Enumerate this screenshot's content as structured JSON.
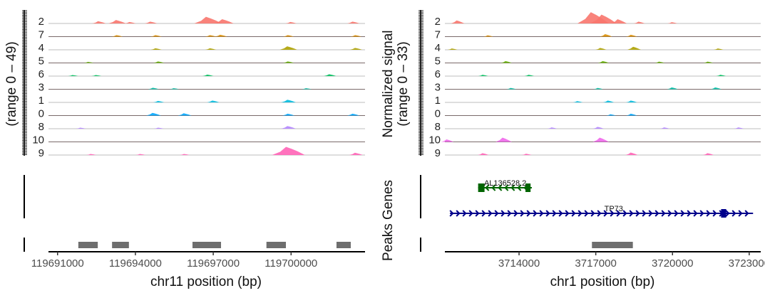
{
  "chart_data": [
    {
      "type": "area",
      "panel": "left",
      "title": "",
      "ylabel": "(range 0 – 49)",
      "ylim": [
        0,
        49
      ],
      "xlabel": "chr11 position (bp)",
      "xlim": [
        119690650,
        119702850
      ],
      "xticks": [
        119691000,
        119694000,
        119697000,
        119700000
      ],
      "xtick_labels": [
        "119691000",
        "119694000",
        "119697000",
        "119700000"
      ],
      "track_order": [
        "2",
        "7",
        "4",
        "5",
        "6",
        "3",
        "1",
        "0",
        "8",
        "10",
        "9"
      ],
      "track_colors": {
        "2": "#F8766D",
        "7": "#DB8E00",
        "4": "#AEA200",
        "5": "#64B200",
        "6": "#00BD5C",
        "3": "#00C1A7",
        "1": "#00BADE",
        "0": "#00A6FF",
        "8": "#B385FF",
        "10": "#EF67EB",
        "9": "#FF63B6"
      },
      "tracks": {
        "2": [
          [
            119692600,
            4
          ],
          [
            119693300,
            7
          ],
          [
            119693800,
            2
          ],
          [
            119694600,
            3
          ],
          [
            119696800,
            15
          ],
          [
            119697400,
            9
          ],
          [
            119700000,
            2
          ],
          [
            119702400,
            3
          ]
        ],
        "7": [
          [
            119693300,
            2
          ],
          [
            119694800,
            2
          ],
          [
            119696900,
            2
          ],
          [
            119697300,
            3
          ],
          [
            119699900,
            2
          ],
          [
            119702500,
            2
          ]
        ],
        "4": [
          [
            119694800,
            2
          ],
          [
            119696900,
            2
          ],
          [
            119699900,
            7
          ],
          [
            119702500,
            3
          ]
        ],
        "5": [
          [
            119692200,
            1
          ],
          [
            119694900,
            2
          ],
          [
            119699900,
            2
          ]
        ],
        "6": [
          [
            119691600,
            1
          ],
          [
            119692500,
            1
          ],
          [
            119696800,
            2
          ],
          [
            119701500,
            3
          ]
        ],
        "3": [
          [
            119694700,
            2
          ],
          [
            119695500,
            1
          ],
          [
            119700600,
            1
          ]
        ],
        "1": [
          [
            119694900,
            2
          ],
          [
            119697000,
            3
          ],
          [
            119699900,
            5
          ]
        ],
        "0": [
          [
            119694700,
            5
          ],
          [
            119695900,
            4
          ],
          [
            119699900,
            3
          ],
          [
            119702400,
            3
          ]
        ],
        "8": [
          [
            119691900,
            1
          ],
          [
            119694900,
            1
          ],
          [
            119699900,
            5
          ]
        ],
        "10": [],
        "9": [
          [
            119692300,
            1
          ],
          [
            119694200,
            1
          ],
          [
            119695900,
            1
          ],
          [
            119699900,
            19
          ],
          [
            119702500,
            4
          ]
        ]
      }
    },
    {
      "type": "area",
      "panel": "right",
      "ylabel": "Normalized signal\n(range 0 – 33)",
      "ylim": [
        0,
        33
      ],
      "xlabel": "chr1 position (bp)",
      "xlim": [
        3711100,
        3723450
      ],
      "xticks": [
        3714000,
        3717000,
        3720000,
        3723000
      ],
      "xtick_labels": [
        "3714000",
        "3717000",
        "3720000",
        "3723000"
      ],
      "track_order": [
        "2",
        "7",
        "4",
        "5",
        "6",
        "3",
        "1",
        "0",
        "8",
        "10",
        "9"
      ],
      "tracks": {
        "2": [
          [
            3711600,
            4
          ],
          [
            3716900,
            18
          ],
          [
            3717300,
            14
          ],
          [
            3717900,
            6
          ],
          [
            3718700,
            2
          ],
          [
            3720000,
            1
          ]
        ],
        "7": [
          [
            3712800,
            1
          ],
          [
            3717400,
            3
          ],
          [
            3718400,
            2
          ]
        ],
        "4": [
          [
            3711400,
            1
          ],
          [
            3717200,
            2
          ],
          [
            3718500,
            4
          ],
          [
            3721800,
            1
          ]
        ],
        "5": [
          [
            3713500,
            2
          ],
          [
            3717300,
            2
          ],
          [
            3719500,
            1
          ],
          [
            3721400,
            1
          ]
        ],
        "6": [
          [
            3712600,
            1
          ],
          [
            3714400,
            1
          ],
          [
            3721900,
            1
          ]
        ],
        "3": [
          [
            3713700,
            1
          ],
          [
            3717100,
            1
          ],
          [
            3720000,
            2
          ],
          [
            3721700,
            2
          ]
        ],
        "1": [
          [
            3716300,
            1
          ],
          [
            3717500,
            2
          ],
          [
            3718400,
            2
          ]
        ],
        "0": [
          [
            3717600,
            1
          ],
          [
            3718400,
            2
          ]
        ],
        "8": [
          [
            3715300,
            1
          ],
          [
            3717100,
            2
          ],
          [
            3719700,
            1
          ],
          [
            3722600,
            1
          ]
        ],
        "10": [
          [
            3711200,
            3
          ],
          [
            3713400,
            6
          ],
          [
            3717200,
            6
          ]
        ],
        "9": [
          [
            3712600,
            2
          ],
          [
            3714300,
            1
          ],
          [
            3718400,
            3
          ],
          [
            3721400,
            2
          ]
        ]
      }
    }
  ],
  "left_panel": {
    "ylabel": "(range 0 – 49)",
    "xlabel": "chr11 position (bp)",
    "peaks": [
      [
        119691800,
        119692550
      ],
      [
        119693100,
        119693750
      ],
      [
        119696200,
        119697300
      ],
      [
        119699050,
        119699800
      ],
      [
        119701750,
        119702300
      ]
    ]
  },
  "right_panel": {
    "ylabel_line1": "Normalized signal",
    "ylabel_line2": "(range 0 – 33)",
    "side_label": "Peaks Genes",
    "xlabel": "chr1 position (bp)",
    "peaks": [
      [
        3716850,
        3718450
      ]
    ],
    "genes": [
      {
        "name": "AL136528.2",
        "start": 3712400,
        "end": 3714500,
        "strand": "-",
        "color": "#006400",
        "row": 0,
        "exons": [
          [
            3712400,
            3712650
          ],
          [
            3714250,
            3714450
          ]
        ]
      },
      {
        "name": "TP73",
        "start": 3711300,
        "end": 3723150,
        "strand": "+",
        "color": "#00008B",
        "row": 1,
        "exons": [
          [
            3721900,
            3722100
          ]
        ]
      }
    ]
  },
  "colors": {
    "baseline": "#bdbdbd",
    "peak": "#6e6e6e",
    "axis": "#000000"
  }
}
